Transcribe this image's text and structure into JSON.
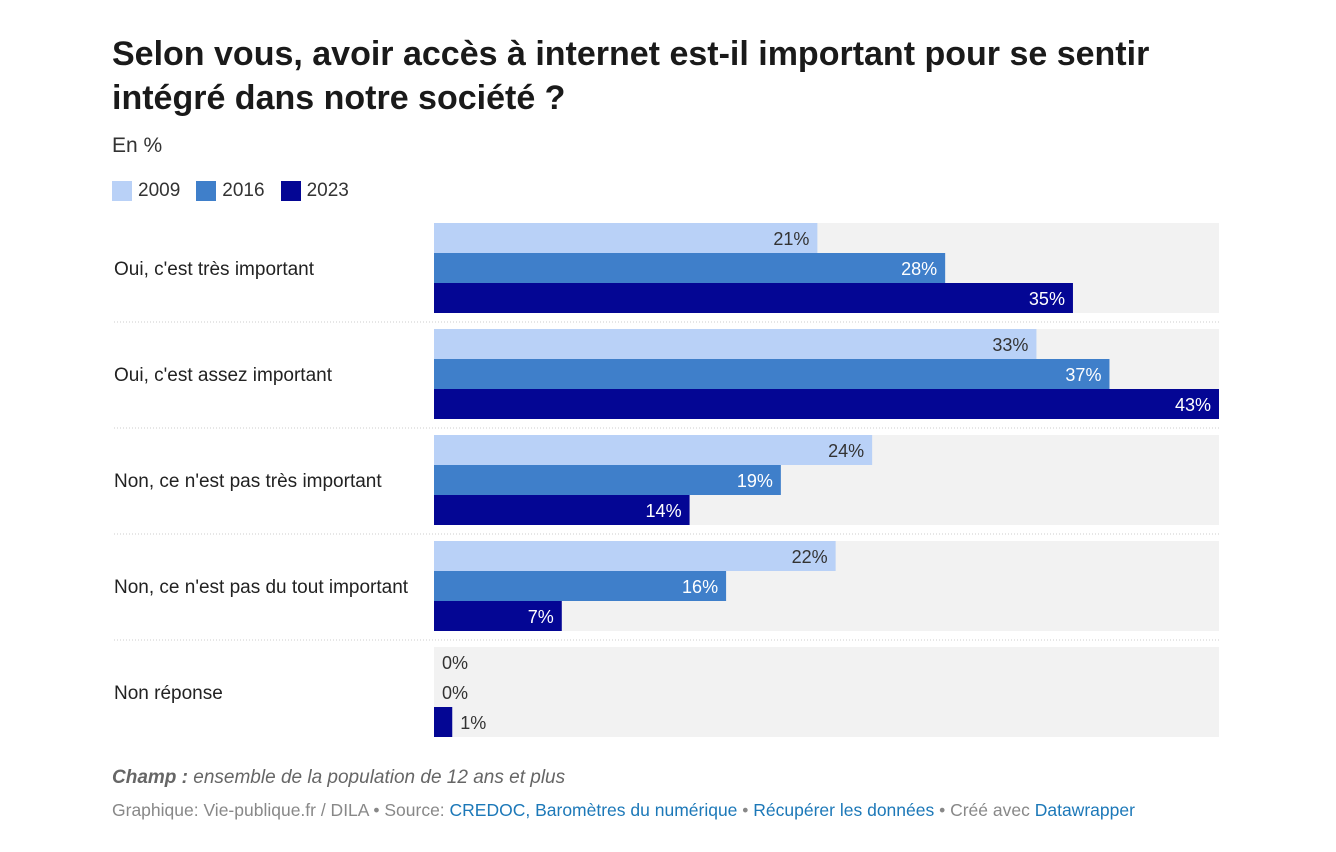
{
  "title": "Selon vous, avoir accès à internet est-il important pour se sentir intégré dans notre société ?",
  "subtitle": "En %",
  "colors": {
    "2009": "#b9d1f7",
    "2016": "#3f7fca",
    "2023": "#040694",
    "track": "#f2f2f2",
    "label_dark": "#333333",
    "label_light": "#ffffff"
  },
  "legend": [
    {
      "label": "2009",
      "color": "#b9d1f7"
    },
    {
      "label": "2016",
      "color": "#3f7fca"
    },
    {
      "label": "2023",
      "color": "#040694"
    }
  ],
  "chart_data": {
    "type": "bar",
    "orientation": "horizontal",
    "categories": [
      "Oui, c'est très important",
      "Oui, c'est assez important",
      "Non, ce n'est pas très important",
      "Non, ce n'est pas du tout important",
      "Non réponse"
    ],
    "series": [
      {
        "name": "2009",
        "values": [
          21,
          33,
          24,
          22,
          0
        ],
        "labels": [
          "21%",
          "33%",
          "24%",
          "22%",
          "0%"
        ]
      },
      {
        "name": "2016",
        "values": [
          28,
          37,
          19,
          16,
          0
        ],
        "labels": [
          "28%",
          "37%",
          "19%",
          "16%",
          "0%"
        ]
      },
      {
        "name": "2023",
        "values": [
          35,
          43,
          14,
          7,
          1
        ],
        "labels": [
          "35%",
          "43%",
          "14%",
          "7%",
          "1%"
        ]
      }
    ],
    "xlim": [
      0,
      43
    ],
    "legend_position": "top-left",
    "grid": false
  },
  "footer": {
    "note_label": "Champ :",
    "note_text": " ensemble de la population de 12 ans et plus",
    "source_prefix": "Graphique: Vie-publique.fr / DILA • Source: ",
    "source_link": "CREDOC, Baromètres du numérique",
    "sep1": " • ",
    "data_link": "Récupérer les données",
    "sep2": " • Créé avec ",
    "tool_link": "Datawrapper"
  }
}
